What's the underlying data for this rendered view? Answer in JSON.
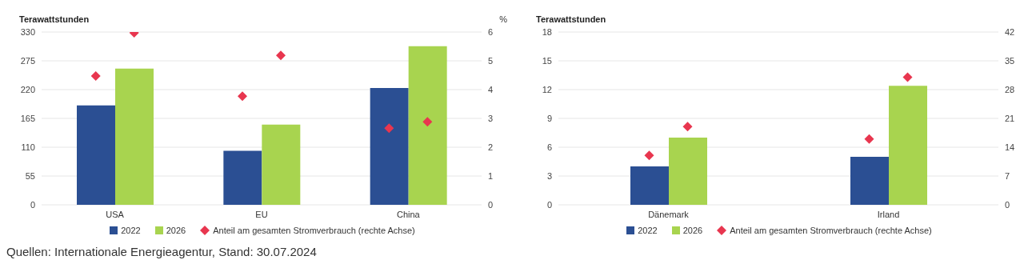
{
  "chart_data": [
    {
      "type": "bar",
      "ylabel": "Terawattstunden",
      "y2label": "%",
      "categories": [
        "USA",
        "EU",
        "China"
      ],
      "series": [
        {
          "name": "2022",
          "color": "#2b4f93",
          "values": [
            190,
            103,
            223
          ]
        },
        {
          "name": "2026",
          "color": "#a8d44f",
          "values": [
            260,
            153,
            303
          ]
        },
        {
          "name": "Anteil am gesamten Stromverbrauch (rechte Achse)",
          "type": "scatter",
          "axis": "y2",
          "color": "#e8364f",
          "values": [
            4.47,
            3.77,
            2.66
          ]
        },
        {
          "type": "scatter",
          "axis": "y2",
          "color": "#e8364f",
          "values": [
            5.97,
            5.19,
            2.88
          ]
        }
      ],
      "ylim": [
        0,
        330
      ],
      "yticks": [
        0,
        55,
        110,
        165,
        220,
        275,
        330
      ],
      "y2lim": [
        0,
        6
      ],
      "y2ticks": [
        0,
        1,
        2,
        3,
        4,
        5,
        6
      ],
      "grid": "y",
      "legend": "bottom",
      "marker": "diamond",
      "annotations": [
        "Quellen: Internationale Energieagentur, Stand: 30.07.2024"
      ]
    },
    {
      "type": "bar",
      "ylabel": "Terawattstunden",
      "categories": [
        "Dänemark",
        "Irland"
      ],
      "series": [
        {
          "name": "2022",
          "color": "#2b4f93",
          "values": [
            4,
            5
          ]
        },
        {
          "name": "2026",
          "color": "#a8d44f",
          "values": [
            7,
            12.4
          ]
        },
        {
          "name": "Anteil am gesamten Stromverbrauch (rechte Achse)",
          "type": "scatter",
          "axis": "y2",
          "color": "#e8364f",
          "values": [
            12,
            16
          ]
        },
        {
          "type": "scatter",
          "axis": "y2",
          "color": "#e8364f",
          "values": [
            19,
            31
          ]
        }
      ],
      "ylim": [
        0,
        18
      ],
      "yticks": [
        0,
        3,
        6,
        9,
        12,
        15,
        18
      ],
      "y2lim": [
        0,
        42
      ],
      "y2ticks": [
        0,
        7,
        14,
        21,
        28,
        35,
        42
      ],
      "grid": "y",
      "legend": "bottom",
      "marker": "diamond"
    }
  ]
}
